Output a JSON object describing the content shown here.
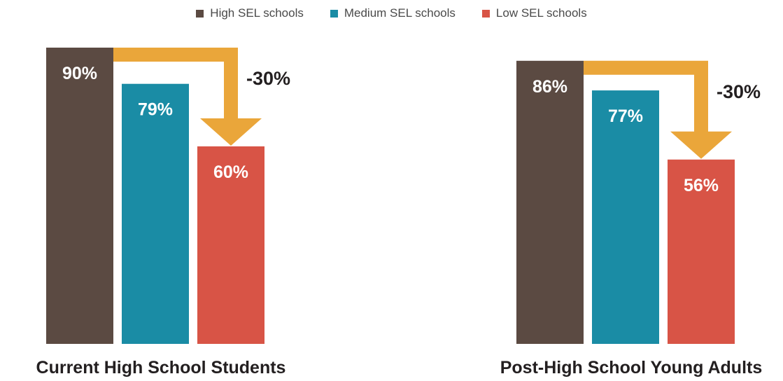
{
  "chart_data": {
    "type": "bar",
    "legend": [
      {
        "name": "High SEL schools",
        "color": "#5b4a42"
      },
      {
        "name": "Medium SEL schools",
        "color": "#1a8ca5"
      },
      {
        "name": "Low SEL schools",
        "color": "#d85446"
      }
    ],
    "legend_position": "top",
    "grid": false,
    "ylim": [
      0,
      100
    ],
    "groups": [
      {
        "title": "Current High School Students",
        "values": [
          90,
          79,
          60
        ],
        "value_labels": [
          "90%",
          "79%",
          "60%"
        ],
        "difference_label": "-30%"
      },
      {
        "title": "Post-High School Young Adults",
        "values": [
          86,
          77,
          56
        ],
        "value_labels": [
          "86%",
          "77%",
          "56%"
        ],
        "difference_label": "-30%"
      }
    ],
    "arrow_color": "#eaa63a"
  }
}
